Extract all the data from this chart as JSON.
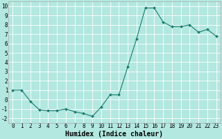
{
  "x": [
    0,
    1,
    2,
    3,
    4,
    5,
    6,
    7,
    8,
    9,
    10,
    11,
    12,
    13,
    14,
    15,
    16,
    17,
    18,
    19,
    20,
    21,
    22,
    23
  ],
  "y": [
    1,
    1,
    -0.2,
    -1.1,
    -1.2,
    -1.2,
    -1.0,
    -1.3,
    -1.5,
    -1.8,
    -0.8,
    0.5,
    0.5,
    3.5,
    6.5,
    9.8,
    9.8,
    8.3,
    7.8,
    7.8,
    8.0,
    7.2,
    7.5,
    6.8
  ],
  "line_color": "#1a7a6e",
  "marker": "D",
  "marker_size": 2.0,
  "bg_color": "#b2e8e0",
  "grid_color": "#ffffff",
  "xlabel": "Humidex (Indice chaleur)",
  "ylim": [
    -2.5,
    10.5
  ],
  "xlim": [
    -0.5,
    23.5
  ],
  "yticks": [
    -2,
    -1,
    0,
    1,
    2,
    3,
    4,
    5,
    6,
    7,
    8,
    9,
    10
  ],
  "xticks": [
    0,
    1,
    2,
    3,
    4,
    5,
    6,
    7,
    8,
    9,
    10,
    11,
    12,
    13,
    14,
    15,
    16,
    17,
    18,
    19,
    20,
    21,
    22,
    23
  ],
  "tick_fontsize": 5.5,
  "xlabel_fontsize": 7.0,
  "linewidth": 0.8
}
